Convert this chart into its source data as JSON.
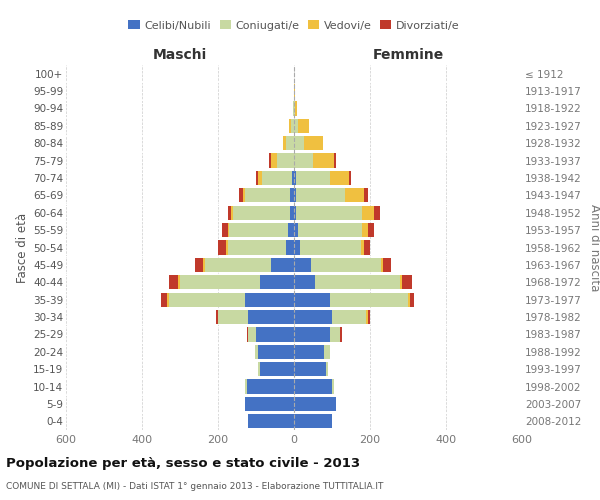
{
  "age_groups": [
    "0-4",
    "5-9",
    "10-14",
    "15-19",
    "20-24",
    "25-29",
    "30-34",
    "35-39",
    "40-44",
    "45-49",
    "50-54",
    "55-59",
    "60-64",
    "65-69",
    "70-74",
    "75-79",
    "80-84",
    "85-89",
    "90-94",
    "95-99",
    "100+"
  ],
  "birth_years": [
    "2008-2012",
    "2003-2007",
    "1998-2002",
    "1993-1997",
    "1988-1992",
    "1983-1987",
    "1978-1982",
    "1973-1977",
    "1968-1972",
    "1963-1967",
    "1958-1962",
    "1953-1957",
    "1948-1952",
    "1943-1947",
    "1938-1942",
    "1933-1937",
    "1928-1932",
    "1923-1927",
    "1918-1922",
    "1913-1917",
    "≤ 1912"
  ],
  "male": {
    "celibi": [
      120,
      130,
      125,
      90,
      95,
      100,
      120,
      130,
      90,
      60,
      20,
      15,
      10,
      10,
      5,
      0,
      0,
      0,
      0,
      0,
      0
    ],
    "coniugati": [
      0,
      0,
      5,
      5,
      8,
      20,
      80,
      200,
      210,
      175,
      155,
      155,
      150,
      120,
      80,
      45,
      20,
      8,
      2,
      0,
      0
    ],
    "vedovi": [
      0,
      0,
      0,
      0,
      0,
      0,
      0,
      5,
      5,
      5,
      5,
      5,
      5,
      5,
      10,
      15,
      10,
      5,
      0,
      0,
      0
    ],
    "divorziati": [
      0,
      0,
      0,
      0,
      0,
      5,
      5,
      15,
      25,
      20,
      20,
      15,
      10,
      10,
      5,
      5,
      0,
      0,
      0,
      0,
      0
    ]
  },
  "female": {
    "nubili": [
      100,
      110,
      100,
      85,
      80,
      95,
      100,
      95,
      55,
      45,
      15,
      10,
      5,
      5,
      5,
      0,
      0,
      0,
      0,
      0,
      0
    ],
    "coniugate": [
      0,
      0,
      5,
      5,
      15,
      25,
      90,
      205,
      225,
      185,
      160,
      170,
      175,
      130,
      90,
      50,
      25,
      10,
      3,
      0,
      0
    ],
    "vedove": [
      0,
      0,
      0,
      0,
      0,
      0,
      5,
      5,
      5,
      5,
      10,
      15,
      30,
      50,
      50,
      55,
      50,
      30,
      5,
      2,
      0
    ],
    "divorziate": [
      0,
      0,
      0,
      0,
      0,
      5,
      5,
      10,
      25,
      20,
      15,
      15,
      15,
      10,
      5,
      5,
      0,
      0,
      0,
      0,
      0
    ]
  },
  "color_celibi": "#4472C4",
  "color_coniugati": "#c8d9a2",
  "color_vedovi": "#f0c040",
  "color_divorziati": "#c0392b",
  "xlim": 600,
  "title": "Popolazione per età, sesso e stato civile - 2013",
  "subtitle": "COMUNE DI SETTALA (MI) - Dati ISTAT 1° gennaio 2013 - Elaborazione TUTTITALIA.IT",
  "ylabel_left": "Fasce di età",
  "ylabel_right": "Anni di nascita",
  "xlabel_left": "Maschi",
  "xlabel_right": "Femmine"
}
